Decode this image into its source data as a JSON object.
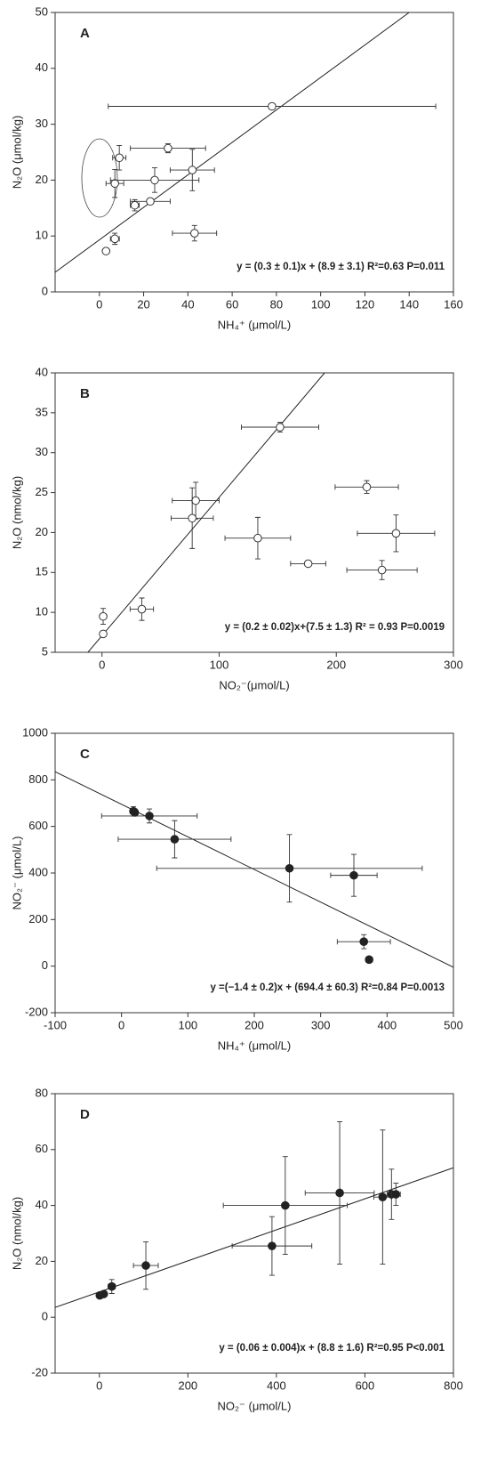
{
  "chart_data": [
    {
      "type": "scatter",
      "label": "A",
      "xlabel": "NH₄⁺ (μmol/L)",
      "ylabel": "N₂O (μmol/kg)",
      "annotation": "y = (0.3 ± 0.1)x + (8.9 ± 3.1)  R²=0.63  P=0.011",
      "xlim": [
        -20,
        160
      ],
      "ylim": [
        0,
        50
      ],
      "xticks": [
        0,
        20,
        40,
        60,
        80,
        100,
        120,
        140,
        160
      ],
      "yticks": [
        0,
        10,
        20,
        30,
        40,
        50
      ],
      "marker_fill": "#ffffff",
      "marker_color": "#333333",
      "x": [
        78,
        31,
        9,
        7,
        25,
        42,
        16,
        23,
        7,
        3,
        43
      ],
      "y": [
        33.2,
        25.7,
        24,
        19.4,
        20,
        21.8,
        15.5,
        16.2,
        9.5,
        7.3,
        10.5
      ],
      "xerr": [
        74,
        17,
        3,
        4,
        20,
        10,
        2,
        9,
        2,
        1,
        10
      ],
      "yerr": [
        0.5,
        0.8,
        2.2,
        2.5,
        2.2,
        3.7,
        1,
        0.5,
        1,
        0.5,
        1.4
      ],
      "trend_line": {
        "x": [
          -20,
          140
        ],
        "y": [
          3.5,
          50
        ]
      }
    },
    {
      "type": "scatter",
      "label": "B",
      "xlabel": "NO₂⁻(μmol/L)",
      "ylabel": "N₂O (nmol/kg)",
      "annotation": "y = (0.2 ± 0.02)x+(7.5 ± 1.3)  R² = 0.93   P=0.0019",
      "xlim": [
        -40,
        300
      ],
      "ylim": [
        5,
        40
      ],
      "xticks": [
        0,
        100,
        200,
        300
      ],
      "yticks": [
        5,
        10,
        15,
        20,
        25,
        30,
        35,
        40
      ],
      "marker_fill": "#ffffff",
      "marker_color": "#333333",
      "x": [
        152,
        226,
        80,
        77,
        251,
        133,
        176,
        239,
        34,
        1,
        1
      ],
      "y": [
        33.2,
        25.7,
        24,
        21.8,
        19.9,
        19.3,
        16.1,
        15.3,
        10.4,
        9.5,
        7.3
      ],
      "xerr": [
        33,
        27,
        20,
        18,
        33,
        28,
        15,
        30,
        10,
        1,
        1
      ],
      "yerr": [
        0.6,
        0.8,
        2.3,
        3.8,
        2.3,
        2.6,
        0.3,
        1.2,
        1.4,
        1,
        0.3
      ],
      "trend_line": {
        "x": [
          -12,
          190
        ],
        "y": [
          5,
          40
        ]
      }
    },
    {
      "type": "scatter",
      "label": "C",
      "xlabel": "NH₄⁺ (μmol/L)",
      "ylabel": "NO₂⁻ (μmol/L)",
      "annotation": "y =(−1.4 ± 0.2)x + (694.4 ± 60.3)  R²=0.84  P=0.0013",
      "xlim": [
        -100,
        500
      ],
      "ylim": [
        -200,
        1000
      ],
      "xticks": [
        -100,
        0,
        100,
        200,
        300,
        400,
        500
      ],
      "yticks": [
        -200,
        0,
        200,
        400,
        600,
        800,
        1000
      ],
      "marker_fill": "#222222",
      "marker_color": "#222222",
      "x": [
        18,
        20,
        42,
        80,
        253,
        350,
        365,
        373
      ],
      "y": [
        665,
        660,
        645,
        545,
        420,
        390,
        105,
        28
      ],
      "xerr": [
        5,
        3,
        72,
        85,
        200,
        35,
        40,
        5
      ],
      "yerr": [
        20,
        15,
        30,
        80,
        145,
        90,
        30,
        10
      ],
      "trend_line": {
        "x": [
          -100,
          500
        ],
        "y": [
          835,
          -5
        ]
      }
    },
    {
      "type": "scatter",
      "label": "D",
      "xlabel": "NO₂⁻ (μmol/L)",
      "ylabel": "N₂O (nmol/kg)",
      "annotation": "y = (0.06 ± 0.004)x + (8.8 ± 1.6)  R²=0.95   P<0.001",
      "xlim": [
        -100,
        800
      ],
      "ylim": [
        -20,
        80
      ],
      "xticks": [
        0,
        200,
        400,
        600,
        800
      ],
      "yticks": [
        -20,
        0,
        20,
        40,
        60,
        80
      ],
      "marker_fill": "#222222",
      "marker_color": "#222222",
      "x": [
        1,
        10,
        28,
        105,
        390,
        420,
        543,
        640,
        660,
        670
      ],
      "y": [
        7.8,
        8.3,
        11,
        18.5,
        25.5,
        40,
        44.5,
        43,
        44,
        44
      ],
      "xerr": [
        5,
        5,
        8,
        28,
        90,
        140,
        78,
        20,
        10,
        10
      ],
      "yerr": [
        0.5,
        0.8,
        2.5,
        8.5,
        10.5,
        17.5,
        25.5,
        24,
        9,
        4
      ],
      "trend_line": {
        "x": [
          -100,
          800
        ],
        "y": [
          3.5,
          53.5
        ]
      }
    }
  ]
}
